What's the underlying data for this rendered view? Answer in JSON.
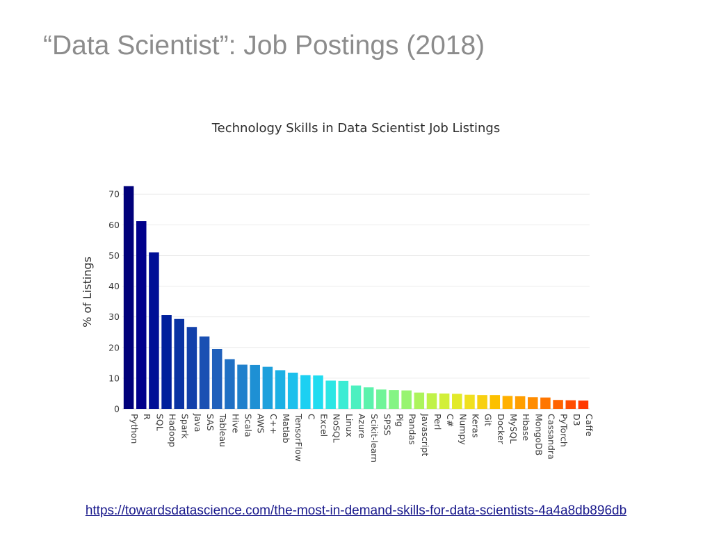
{
  "slide": {
    "title": "“Data Scientist”: Job Postings (2018)",
    "source_url": "https://towardsdatascience.com/the-most-in-demand-skills-for-data-scientists-4a4a8db896db"
  },
  "chart_data": {
    "type": "bar",
    "title": "Technology Skills in Data Scientist Job Listings",
    "xlabel": "",
    "ylabel": "% of Listings",
    "ylim": [
      0,
      73
    ],
    "yticks": [
      0,
      10,
      20,
      30,
      40,
      50,
      60,
      70
    ],
    "grid": true,
    "legend": "none",
    "categories": [
      "Python",
      "R",
      "SQL",
      "Hadoop",
      "Spark",
      "Java",
      "SAS",
      "Tableau",
      "Hive",
      "Scala",
      "AWS",
      "C++",
      "Matlab",
      "TensorFlow",
      "C",
      "Excel",
      "NoSQL",
      "Linux",
      "Azure",
      "Scikit-learn",
      "SPSS",
      "Pig",
      "Pandas",
      "Javascript",
      "Perl",
      "C#",
      "Numpy",
      "Keras",
      "Git",
      "Docker",
      "MySQL",
      "Hbase",
      "MongoDB",
      "Cassandra",
      "PyTorch",
      "D3",
      "Caffe"
    ],
    "values": [
      72.6,
      61.2,
      51.0,
      30.6,
      29.3,
      26.7,
      23.6,
      19.5,
      16.2,
      14.4,
      14.3,
      13.7,
      12.6,
      11.8,
      11.0,
      10.9,
      9.2,
      9.1,
      7.6,
      7.0,
      6.3,
      6.1,
      6.0,
      5.3,
      5.1,
      5.0,
      4.9,
      4.6,
      4.5,
      4.5,
      4.2,
      4.1,
      3.8,
      3.7,
      2.9,
      2.8,
      2.7
    ],
    "colors": [
      "#00007a",
      "#00008b",
      "#000f96",
      "#00209c",
      "#0a33a3",
      "#1240aa",
      "#1a50b3",
      "#2060bb",
      "#2070c4",
      "#1f80cc",
      "#1e90d4",
      "#1ea0dc",
      "#1cb0e4",
      "#1cc0ec",
      "#1cd0f2",
      "#20dcf0",
      "#2ce6e4",
      "#3cecd4",
      "#4cf0c0",
      "#5cf2ac",
      "#70f498",
      "#84f484",
      "#98f470",
      "#acf45c",
      "#c0f248",
      "#d2ef38",
      "#e2ea2a",
      "#f0e020",
      "#f8d010",
      "#fcc000",
      "#ffb000",
      "#ff9e00",
      "#ff8c00",
      "#ff7600",
      "#ff6200",
      "#ff4c00",
      "#ff3800"
    ]
  }
}
